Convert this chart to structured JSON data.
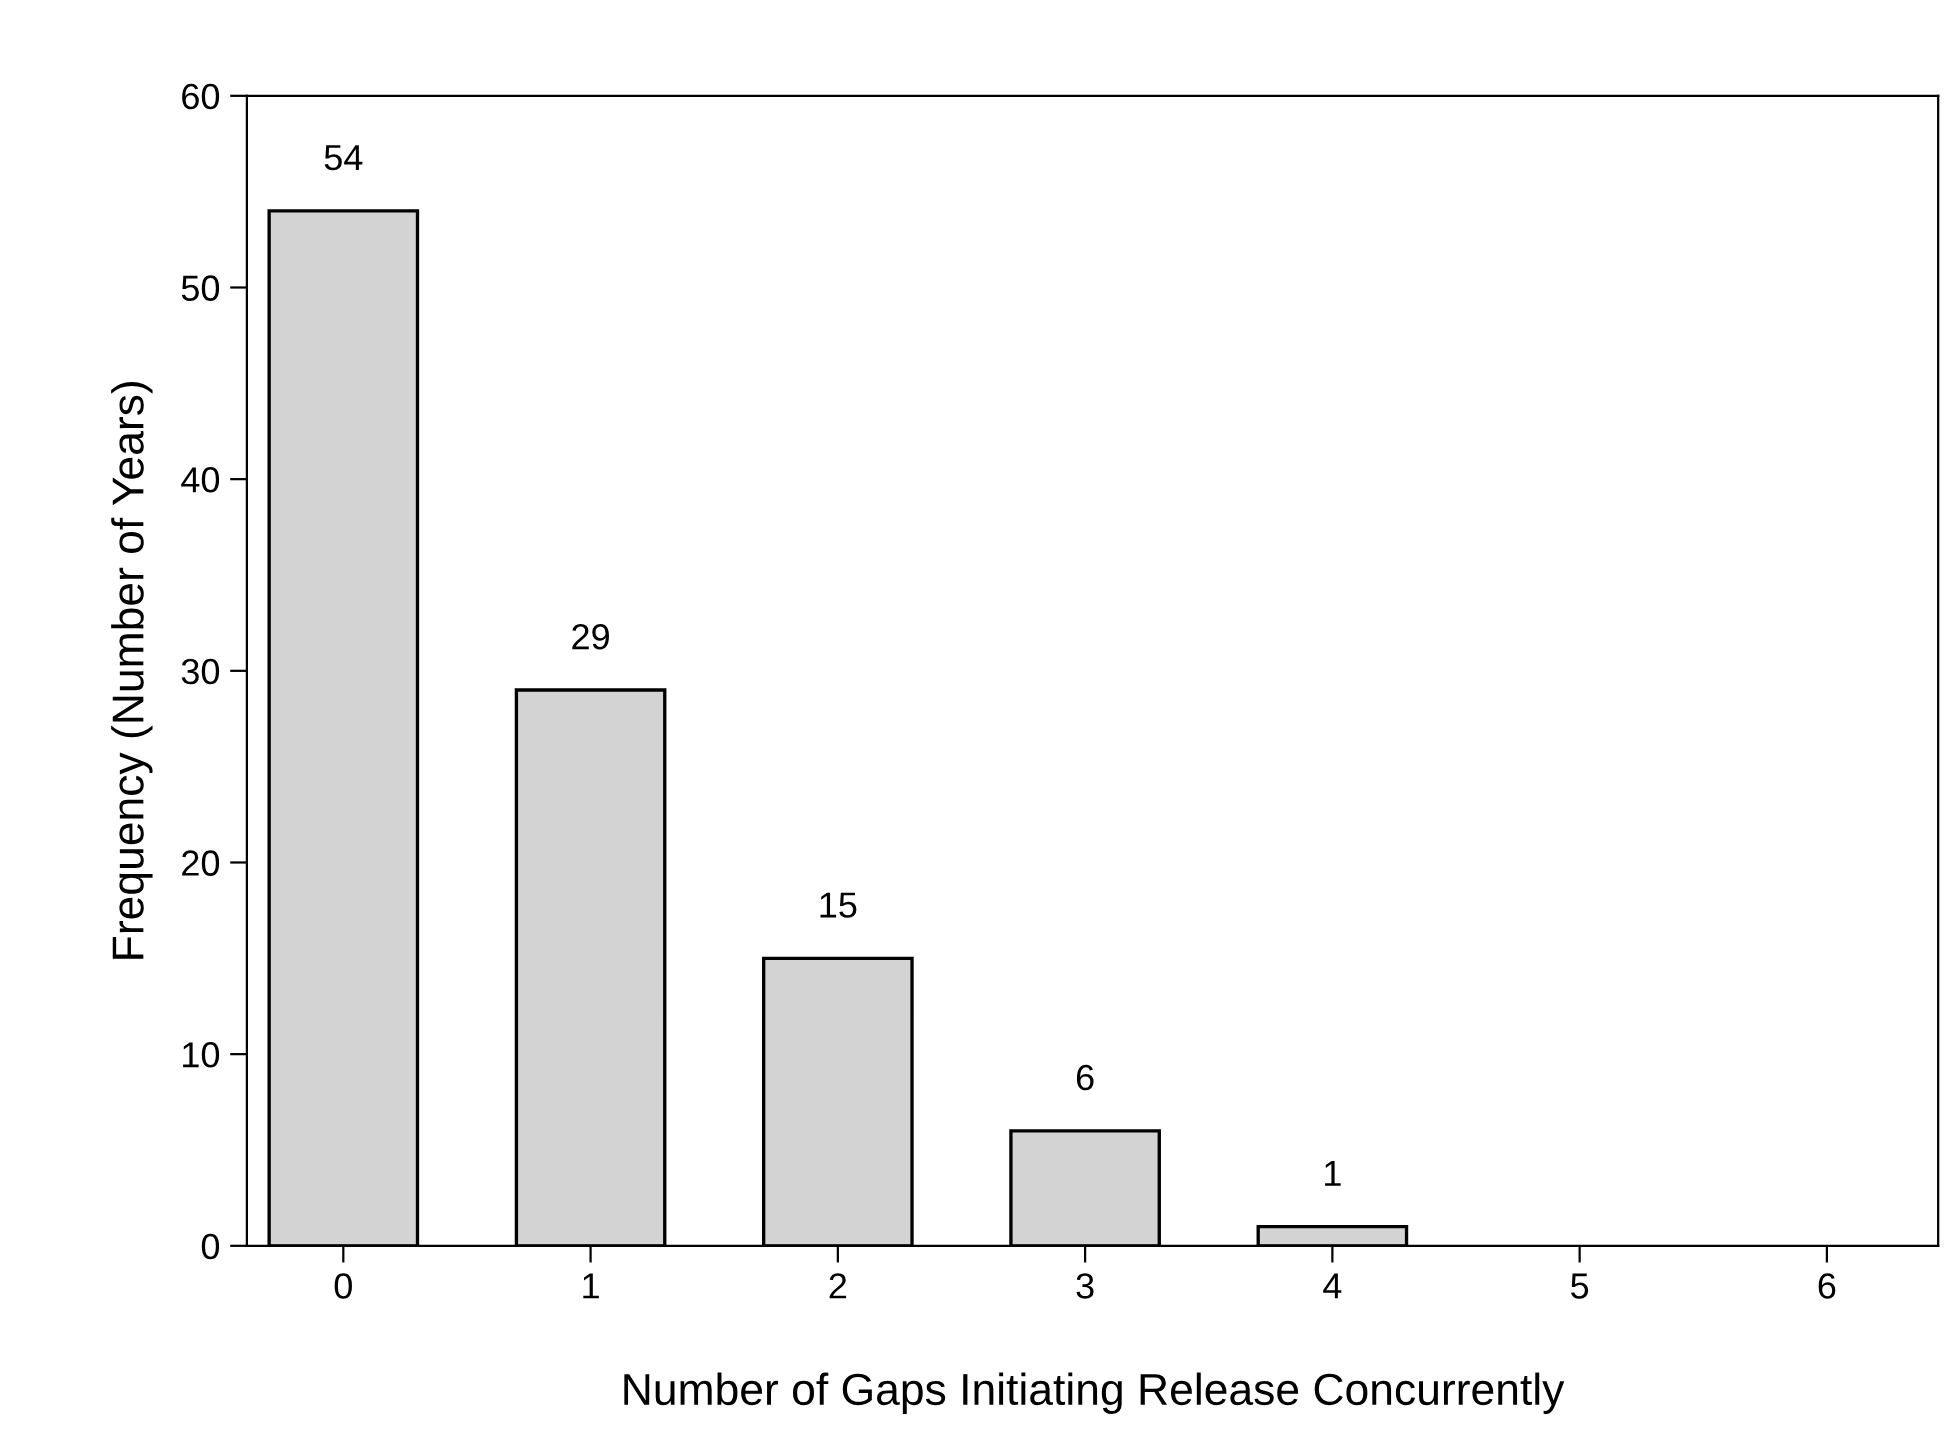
{
  "chart_data": {
    "type": "bar",
    "xlabel": "Number of Gaps Initiating Release Concurrently",
    "ylabel": "Frequency (Number of Years)",
    "categories": [
      "0",
      "1",
      "2",
      "3",
      "4",
      "5",
      "6"
    ],
    "values": [
      54,
      29,
      15,
      6,
      1,
      0,
      0
    ],
    "value_labels": [
      "54",
      "29",
      "15",
      "6",
      "1",
      null,
      null
    ],
    "color": "#d3d3d3",
    "ylim": [
      0,
      60
    ],
    "yticks": [
      0,
      10,
      20,
      30,
      40,
      50,
      60
    ],
    "grid": false
  }
}
